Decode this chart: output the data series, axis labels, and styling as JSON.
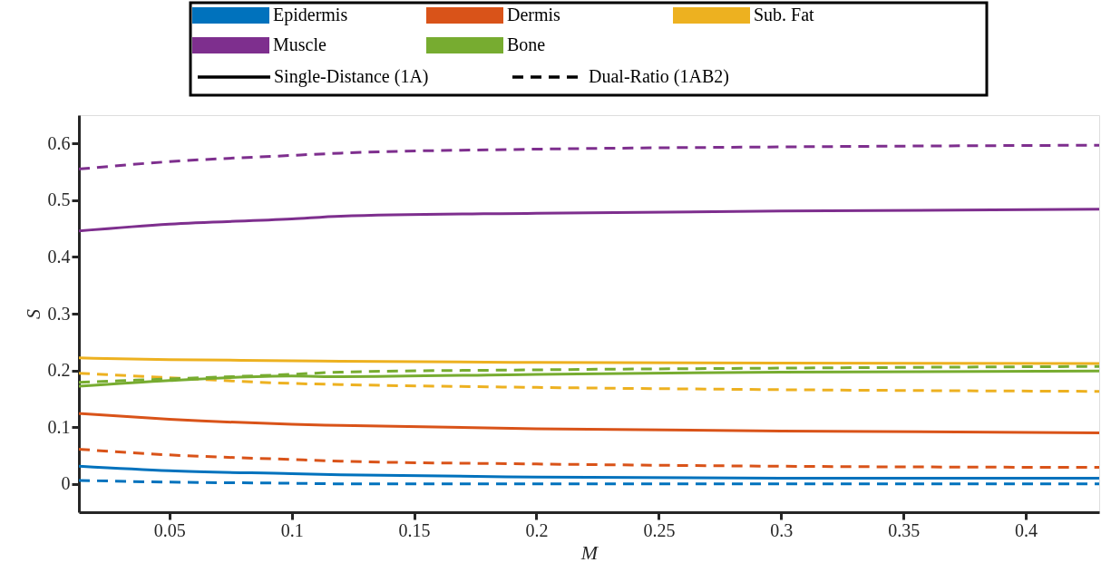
{
  "chart_data": {
    "type": "line",
    "xlabel": "M",
    "ylabel": "S",
    "x": [
      0.013,
      0.05,
      0.1,
      0.12,
      0.2,
      0.3,
      0.43
    ],
    "xlim": [
      0.013,
      0.43
    ],
    "ylim": [
      -0.05,
      0.65
    ],
    "xticks": [
      0.05,
      0.1,
      0.15,
      0.2,
      0.25,
      0.3,
      0.35,
      0.4
    ],
    "yticks": [
      0,
      0.1,
      0.2,
      0.3,
      0.4,
      0.5,
      0.6
    ],
    "grid": false,
    "legend": "top",
    "annotations": [
      "Single-Distance (1A)",
      "Dual-Ratio (1AB2)"
    ],
    "series": [
      {
        "name": "Epidermis",
        "color": "#0072bd",
        "line_style": "solid",
        "values": [
          0.031,
          0.023,
          0.018,
          0.016,
          0.012,
          0.01,
          0.01
        ]
      },
      {
        "color": "#0072bd",
        "line_style": "dashed",
        "values": [
          0.006,
          0.003,
          0.001,
          0.0,
          0.0,
          0.0,
          0.0
        ]
      },
      {
        "name": "Dermis",
        "color": "#d95319",
        "line_style": "solid",
        "values": [
          0.124,
          0.114,
          0.105,
          0.103,
          0.097,
          0.093,
          0.09
        ]
      },
      {
        "color": "#d95319",
        "line_style": "dashed",
        "values": [
          0.061,
          0.051,
          0.043,
          0.04,
          0.035,
          0.031,
          0.029
        ]
      },
      {
        "name": "Sub. Fat",
        "color": "#edb120",
        "line_style": "solid",
        "values": [
          0.222,
          0.219,
          0.217,
          0.216,
          0.214,
          0.213,
          0.212
        ]
      },
      {
        "color": "#edb120",
        "line_style": "dashed",
        "values": [
          0.195,
          0.187,
          0.177,
          0.175,
          0.17,
          0.166,
          0.163
        ]
      },
      {
        "name": "Muscle",
        "color": "#7e2f8e",
        "line_style": "solid",
        "values": [
          0.446,
          0.458,
          0.467,
          0.472,
          0.477,
          0.481,
          0.484
        ]
      },
      {
        "color": "#7e2f8e",
        "line_style": "dashed",
        "values": [
          0.555,
          0.568,
          0.579,
          0.583,
          0.59,
          0.594,
          0.597
        ]
      },
      {
        "name": "Bone",
        "color": "#77ac30",
        "line_style": "solid",
        "values": [
          0.172,
          0.182,
          0.19,
          0.189,
          0.193,
          0.197,
          0.199
        ]
      },
      {
        "color": "#77ac30",
        "line_style": "dashed",
        "values": [
          0.179,
          0.185,
          0.193,
          0.197,
          0.201,
          0.204,
          0.207
        ]
      }
    ]
  }
}
